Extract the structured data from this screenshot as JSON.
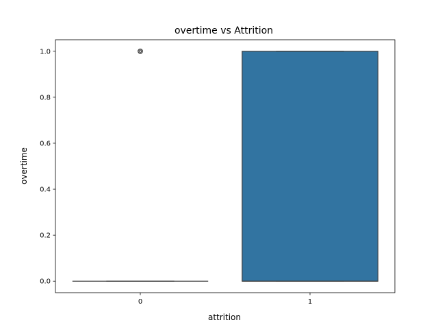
{
  "chart_data": {
    "type": "box",
    "title": "overtime vs Attrition",
    "xlabel": "attrition",
    "ylabel": "overtime",
    "categories": [
      "0",
      "1"
    ],
    "ylim": [
      -0.05,
      1.05
    ],
    "yticks": [
      0.0,
      0.2,
      0.4,
      0.6,
      0.8,
      1.0
    ],
    "ytick_labels": [
      "0.0",
      "0.2",
      "0.4",
      "0.6",
      "0.8",
      "1.0"
    ],
    "grid": false,
    "boxes": [
      {
        "category": "0",
        "whisker_low": 0,
        "q1": 0,
        "median": 0,
        "q3": 0,
        "whisker_high": 0,
        "outliers": [
          1
        ]
      },
      {
        "category": "1",
        "whisker_low": 0,
        "q1": 0,
        "median": 0,
        "q3": 1,
        "whisker_high": 1,
        "outliers": []
      }
    ],
    "colors": {
      "box_fill": "#3274a1",
      "box_edge": "#3f3f3f",
      "axis": "#000000"
    }
  }
}
